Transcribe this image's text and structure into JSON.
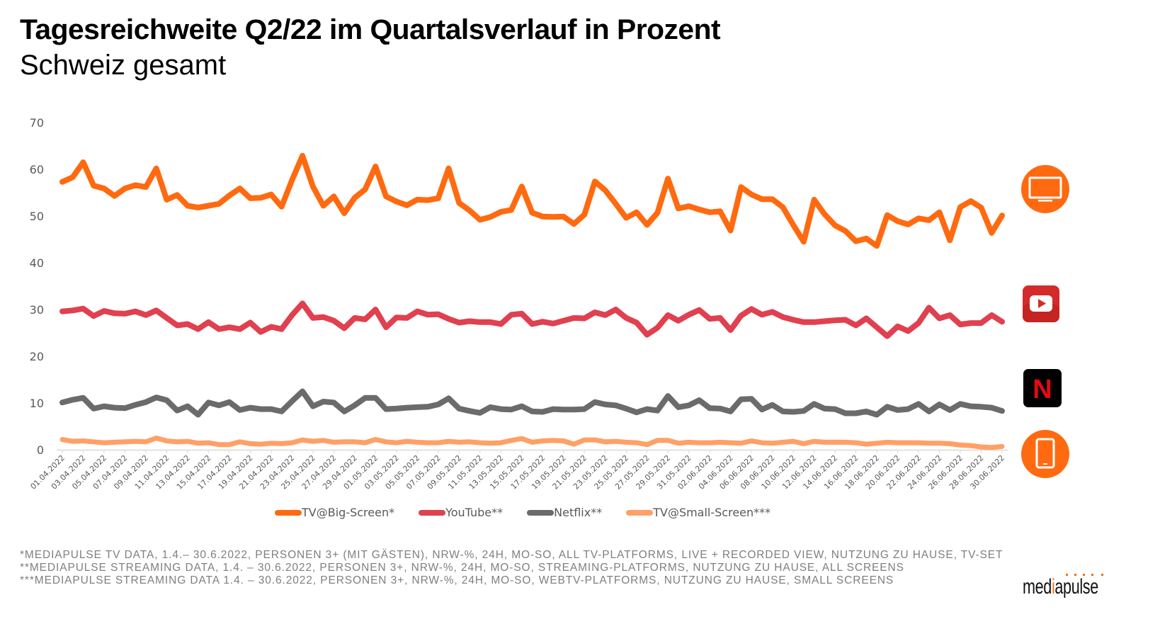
{
  "header": {
    "title": "Tagesreichweite Q2/22 im Quartalsverlauf in Prozent",
    "subtitle": "Schweiz gesamt"
  },
  "chart_data": {
    "type": "line",
    "title": "Tagesreichweite Q2/22 im Quartalsverlauf in Prozent",
    "subtitle": "Schweiz gesamt",
    "xlabel": "",
    "ylabel": "",
    "ylim": [
      0,
      70
    ],
    "yticks": [
      0,
      10,
      20,
      30,
      40,
      50,
      60,
      70
    ],
    "grid": false,
    "legend_position": "bottom",
    "x_start": "01.04.2022",
    "x_end": "30.06.2022",
    "x": [
      "01.04.2022",
      "02.04.2022",
      "03.04.2022",
      "04.04.2022",
      "05.04.2022",
      "06.04.2022",
      "07.04.2022",
      "08.04.2022",
      "09.04.2022",
      "10.04.2022",
      "11.04.2022",
      "12.04.2022",
      "13.04.2022",
      "14.04.2022",
      "15.04.2022",
      "16.04.2022",
      "17.04.2022",
      "18.04.2022",
      "19.04.2022",
      "20.04.2022",
      "21.04.2022",
      "22.04.2022",
      "23.04.2022",
      "24.04.2022",
      "25.04.2022",
      "26.04.2022",
      "27.04.2022",
      "28.04.2022",
      "29.04.2022",
      "30.04.2022",
      "01.05.2022",
      "02.05.2022",
      "03.05.2022",
      "04.05.2022",
      "05.05.2022",
      "06.05.2022",
      "07.05.2022",
      "08.05.2022",
      "09.05.2022",
      "10.05.2022",
      "11.05.2022",
      "12.05.2022",
      "13.05.2022",
      "14.05.2022",
      "15.05.2022",
      "16.05.2022",
      "17.05.2022",
      "18.05.2022",
      "19.05.2022",
      "20.05.2022",
      "21.05.2022",
      "22.05.2022",
      "23.05.2022",
      "24.05.2022",
      "25.05.2022",
      "26.05.2022",
      "27.05.2022",
      "28.05.2022",
      "29.05.2022",
      "30.05.2022",
      "31.05.2022",
      "01.06.2022",
      "02.06.2022",
      "03.06.2022",
      "04.06.2022",
      "05.06.2022",
      "06.06.2022",
      "07.06.2022",
      "08.06.2022",
      "09.06.2022",
      "10.06.2022",
      "11.06.2022",
      "12.06.2022",
      "13.06.2022",
      "14.06.2022",
      "15.06.2022",
      "16.06.2022",
      "17.06.2022",
      "18.06.2022",
      "19.06.2022",
      "20.06.2022",
      "21.06.2022",
      "22.06.2022",
      "23.06.2022",
      "24.06.2022",
      "25.06.2022",
      "26.06.2022",
      "27.06.2022",
      "28.06.2022",
      "29.06.2022",
      "30.06.2022"
    ],
    "xtick_labels": [
      "01.04.2022",
      "03.04.2022",
      "05.04.2022",
      "07.04.2022",
      "09.04.2022",
      "11.04.2022",
      "13.04.2022",
      "15.04.2022",
      "17.04.2022",
      "19.04.2022",
      "21.04.2022",
      "23.04.2022",
      "25.04.2022",
      "27.04.2022",
      "29.04.2022",
      "01.05.2022",
      "03.05.2022",
      "05.05.2022",
      "07.05.2022",
      "09.05.2022",
      "11.05.2022",
      "13.05.2022",
      "15.05.2022",
      "17.05.2022",
      "19.05.2022",
      "21.05.2022",
      "23.05.2022",
      "25.05.2022",
      "27.05.2022",
      "29.05.2022",
      "31.05.2022",
      "02.06.2022",
      "04.06.2022",
      "06.06.2022",
      "08.06.2022",
      "10.06.2022",
      "12.06.2022",
      "14.06.2022",
      "16.06.2022",
      "18.06.2022",
      "20.06.2022",
      "22.06.2022",
      "24.06.2022",
      "26.06.2022",
      "28.06.2022",
      "30.06.2022"
    ],
    "series": [
      {
        "name": "TV@Big-Screen*",
        "color": "#ff6a10",
        "values": [
          57.3,
          58.3,
          61.5,
          56.5,
          55.9,
          54.3,
          55.9,
          56.6,
          56.2,
          60.2,
          53.5,
          54.5,
          52.2,
          51.8,
          52.2,
          52.6,
          54.4,
          55.9,
          53.8,
          53.9,
          54.6,
          52.0,
          57.7,
          62.9,
          56.3,
          52.2,
          54.2,
          50.6,
          53.9,
          55.7,
          60.6,
          54.2,
          53.1,
          52.3,
          53.5,
          53.4,
          53.8,
          60.2,
          52.8,
          51.2,
          49.2,
          49.8,
          50.9,
          51.3,
          56.3,
          50.7,
          49.9,
          49.8,
          49.9,
          48.3,
          50.3,
          57.4,
          55.5,
          52.6,
          49.6,
          50.8,
          48.1,
          50.7,
          58.0,
          51.6,
          52.1,
          51.4,
          50.8,
          51.0,
          46.9,
          56.2,
          54.6,
          53.6,
          53.6,
          51.9,
          48.1,
          44.5,
          53.5,
          50.4,
          48.0,
          46.8,
          44.6,
          45.2,
          43.6,
          50.2,
          48.9,
          48.2,
          49.5,
          49.1,
          50.8,
          44.8,
          51.9,
          53.2,
          51.8,
          46.4,
          50.1
        ]
      },
      {
        "name": "YouTube**",
        "color": "#e04050",
        "values": [
          29.6,
          29.8,
          30.2,
          28.6,
          29.7,
          29.2,
          29.1,
          29.6,
          28.8,
          29.8,
          28.2,
          26.6,
          26.9,
          25.8,
          27.3,
          25.8,
          26.2,
          25.8,
          27.2,
          25.2,
          26.3,
          25.8,
          28.8,
          31.3,
          28.2,
          28.4,
          27.6,
          26.0,
          28.2,
          27.9,
          30.0,
          26.2,
          28.3,
          28.2,
          29.6,
          28.9,
          29.0,
          28.0,
          27.2,
          27.5,
          27.3,
          27.3,
          26.9,
          28.9,
          29.1,
          26.9,
          27.4,
          27.0,
          27.6,
          28.2,
          28.1,
          29.4,
          28.8,
          30.0,
          28.2,
          27.2,
          24.6,
          26.1,
          28.8,
          27.6,
          28.9,
          29.9,
          28.0,
          28.2,
          25.6,
          28.7,
          30.1,
          28.9,
          29.5,
          28.4,
          27.8,
          27.3,
          27.3,
          27.5,
          27.7,
          27.8,
          26.6,
          28.1,
          26.2,
          24.3,
          26.4,
          25.4,
          27.1,
          30.4,
          28.1,
          28.8,
          26.8,
          27.1,
          27.1,
          28.8,
          27.4
        ]
      },
      {
        "name": "Netflix**",
        "color": "#6b6b6b",
        "values": [
          10.1,
          10.7,
          11.1,
          8.8,
          9.3,
          9.0,
          8.9,
          9.6,
          10.2,
          11.2,
          10.6,
          8.4,
          9.3,
          7.5,
          10.1,
          9.5,
          10.2,
          8.5,
          9.0,
          8.7,
          8.7,
          8.2,
          10.4,
          12.5,
          9.3,
          10.3,
          10.1,
          8.2,
          9.5,
          11.1,
          11.1,
          8.7,
          8.8,
          9.0,
          9.1,
          9.2,
          9.7,
          11.0,
          8.8,
          8.3,
          7.9,
          9.1,
          8.7,
          8.6,
          9.3,
          8.2,
          8.1,
          8.7,
          8.6,
          8.6,
          8.7,
          10.2,
          9.7,
          9.5,
          8.8,
          8.0,
          8.7,
          8.4,
          11.5,
          9.1,
          9.5,
          10.6,
          8.9,
          8.8,
          8.2,
          10.8,
          10.9,
          8.6,
          9.6,
          8.2,
          8.1,
          8.3,
          9.8,
          8.8,
          8.7,
          7.8,
          7.8,
          8.2,
          7.5,
          9.2,
          8.5,
          8.7,
          9.8,
          8.2,
          9.7,
          8.5,
          9.8,
          9.3,
          9.2,
          9.0,
          8.3
        ]
      },
      {
        "name": "TV@Small-Screen***",
        "color": "#ffa066",
        "values": [
          2.2,
          1.8,
          1.9,
          1.7,
          1.5,
          1.6,
          1.7,
          1.8,
          1.7,
          2.5,
          1.9,
          1.7,
          1.8,
          1.4,
          1.5,
          1.1,
          1.1,
          1.7,
          1.3,
          1.2,
          1.4,
          1.3,
          1.5,
          2.1,
          1.8,
          2.0,
          1.6,
          1.7,
          1.7,
          1.5,
          2.2,
          1.7,
          1.5,
          1.8,
          1.6,
          1.5,
          1.5,
          1.8,
          1.6,
          1.7,
          1.5,
          1.4,
          1.5,
          2.0,
          2.4,
          1.6,
          1.9,
          2.0,
          1.9,
          1.2,
          2.1,
          2.1,
          1.7,
          1.8,
          1.6,
          1.5,
          1.1,
          2.0,
          2.0,
          1.4,
          1.6,
          1.5,
          1.5,
          1.6,
          1.5,
          1.4,
          1.9,
          1.5,
          1.4,
          1.6,
          1.8,
          1.3,
          1.8,
          1.6,
          1.6,
          1.6,
          1.5,
          1.2,
          1.4,
          1.6,
          1.5,
          1.5,
          1.5,
          1.4,
          1.4,
          1.3,
          1.0,
          0.9,
          0.6,
          0.5,
          0.7
        ]
      }
    ]
  },
  "legend": {
    "items": [
      {
        "label": "TV@Big-Screen*",
        "color": "#ff6a10"
      },
      {
        "label": "YouTube**",
        "color": "#e04050"
      },
      {
        "label": "Netflix**",
        "color": "#6b6b6b"
      },
      {
        "label": "TV@Small-Screen***",
        "color": "#ffa066"
      }
    ]
  },
  "icons": {
    "tv": "tv-icon",
    "youtube": "youtube-icon",
    "netflix": "netflix-icon",
    "tablet": "tablet-icon",
    "netflix_letter": "N"
  },
  "footnotes": [
    "*MEDIAPULSE TV DATA, 1.4.– 30.6.2022, PERSONEN 3+ (MIT GÄSTEN), NRW-%, 24H, MO-SO, ALL TV-PLATFORMS, LIVE + RECORDED VIEW, NUTZUNG ZU HAUSE, TV-SET",
    "**MEDIAPULSE STREAMING DATA, 1.4. – 30.6.2022, PERSONEN 3+, NRW-%, 24H, MO-SO, STREAMING-PLATFORMS, NUTZUNG ZU HAUSE, ALL SCREENS",
    "***MEDIAPULSE STREAMING DATA 1.4. – 30.6.2022, PERSONEN 3+, NRW-%, 24H, MO-SO, WEBTV-PLATFORMS, NUTZUNG ZU HAUSE, SMALL SCREENS"
  ],
  "logo": {
    "part1": "med",
    "accent": "i",
    "part2": "apulse",
    "accent_color": "#e8731e"
  }
}
